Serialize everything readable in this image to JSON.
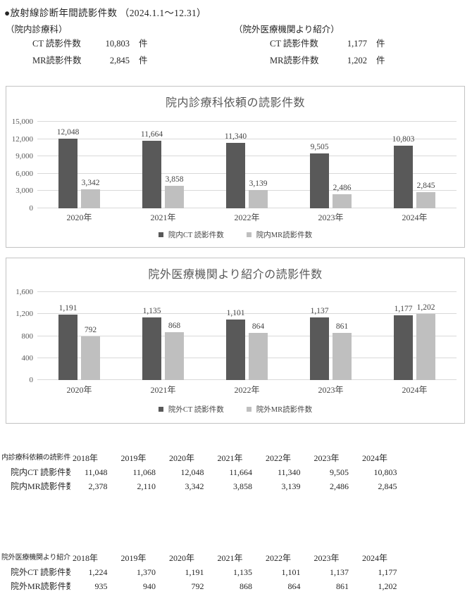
{
  "page": {
    "title": "●放射線診断年間読影件数 （2024.1.1～12.31）"
  },
  "summary": {
    "left": {
      "heading": "（院内診療科）",
      "rows": [
        {
          "label": "CT 読影件数",
          "value": "10,803",
          "unit": "件"
        },
        {
          "label": "MR読影件数",
          "value": "2,845",
          "unit": "件"
        }
      ]
    },
    "right": {
      "heading": "（院外医療機関より紹介）",
      "rows": [
        {
          "label": "CT 読影件数",
          "value": "1,177",
          "unit": "件"
        },
        {
          "label": "MR読影件数",
          "value": "1,202",
          "unit": "件"
        }
      ]
    }
  },
  "colors": {
    "ct": "#595959",
    "mr": "#bfbfbf",
    "grid": "#d9d9d9",
    "panel_border": "#c3c3c3"
  },
  "chart_data": [
    {
      "type": "bar",
      "title": "院内診療科依頼の読影件数",
      "categories": [
        "2020年",
        "2021年",
        "2022年",
        "2023年",
        "2024年"
      ],
      "series": [
        {
          "name": "院内CT 読影件数",
          "values": [
            12048,
            11664,
            11340,
            9505,
            10803
          ],
          "labels": [
            "12,048",
            "11,664",
            "11,340",
            "9,505",
            "10,803"
          ]
        },
        {
          "name": "院内MR読影件数",
          "values": [
            3342,
            3858,
            3139,
            2486,
            2845
          ],
          "labels": [
            "3,342",
            "3,858",
            "3,139",
            "2,486",
            "2,845"
          ]
        }
      ],
      "ylim": [
        0,
        15000
      ],
      "yticks": [
        "0",
        "3,000",
        "6,000",
        "9,000",
        "12,000",
        "15,000"
      ],
      "grid": true,
      "legend_position": "bottom"
    },
    {
      "type": "bar",
      "title": "院外医療機関より紹介の読影件数",
      "categories": [
        "2020年",
        "2021年",
        "2022年",
        "2023年",
        "2024年"
      ],
      "series": [
        {
          "name": "院外CT 読影件数",
          "values": [
            1191,
            1135,
            1101,
            1137,
            1177
          ],
          "labels": [
            "1,191",
            "1,135",
            "1,101",
            "1,137",
            "1,177"
          ]
        },
        {
          "name": "院外MR読影件数",
          "values": [
            792,
            868,
            864,
            861,
            1202
          ],
          "labels": [
            "792",
            "868",
            "864",
            "861",
            "1,202"
          ]
        }
      ],
      "ylim": [
        0,
        1600
      ],
      "yticks": [
        "0",
        "400",
        "800",
        "1,200",
        "1,600"
      ],
      "grid": true,
      "legend_position": "bottom"
    }
  ],
  "tables": [
    {
      "label": "内診療科依頼の読影件",
      "years": [
        "2018年",
        "2019年",
        "2020年",
        "2021年",
        "2022年",
        "2023年",
        "2024年"
      ],
      "rows": [
        {
          "label": "院内CT 読影件数",
          "values": [
            "11,048",
            "11,068",
            "12,048",
            "11,664",
            "11,340",
            "9,505",
            "10,803"
          ]
        },
        {
          "label": "院内MR読影件数",
          "values": [
            "2,378",
            "2,110",
            "3,342",
            "3,858",
            "3,139",
            "2,486",
            "2,845"
          ]
        }
      ]
    },
    {
      "label": "院外医療機関より紹介（",
      "years": [
        "2018年",
        "2019年",
        "2020年",
        "2021年",
        "2022年",
        "2023年",
        "2024年"
      ],
      "rows": [
        {
          "label": "院外CT 読影件数",
          "values": [
            "1,224",
            "1,370",
            "1,191",
            "1,135",
            "1,101",
            "1,137",
            "1,177"
          ]
        },
        {
          "label": "院外MR読影件数",
          "values": [
            "935",
            "940",
            "792",
            "868",
            "864",
            "861",
            "1,202"
          ]
        }
      ]
    }
  ]
}
